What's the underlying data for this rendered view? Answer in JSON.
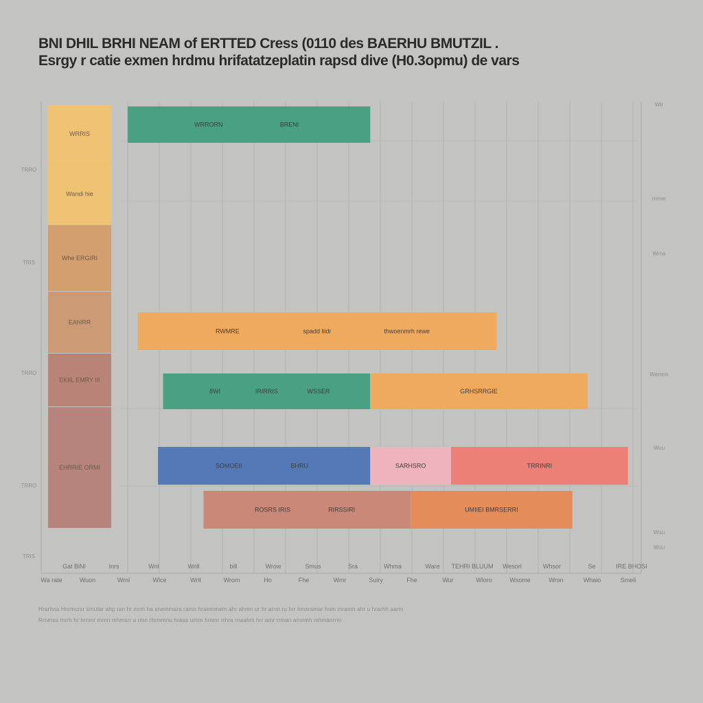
{
  "title": "BNI DHIL BRHI NEAM of ERTTED Cress (0110 des BAERHU BMUTZIL .",
  "subtitle": "Esrgy r catie exmen hrdmu hrifatatzeplatin rapsd dive (H0.3opmu) de vars",
  "colors": {
    "background": "#c3c3c1",
    "gold": "#f0c374",
    "light_brown": "#d49f6f",
    "brown": "#cc9a74",
    "mauve": "#b88478",
    "muted_mauve": "#b6847c",
    "teal": "#4aa082",
    "orange": "#efaa5d",
    "blue": "#5578b6",
    "pink": "#efb3bc",
    "salmon": "#ec8077",
    "dusty_rose": "#c98878",
    "dark_orange": "#e48c5a"
  },
  "chart_data": {
    "type": "bar",
    "orientation": "horizontal-stacked",
    "title": "BNI DHIL BRHI NEAM of ERTTED Cress (0110 des BAERHU BMUTZIL .",
    "subtitle": "Esrgy r catie exmen hrdmu hrifatatzeplatin rapsd dive (H0.3opmu) de vars",
    "xlim": [
      0,
      100
    ],
    "grid": true,
    "legend": {
      "position": "left",
      "entries": [
        {
          "label": "WRRIS",
          "color": "gold"
        },
        {
          "label": "Wandi hie",
          "color": "gold"
        },
        {
          "label": "Whe ERGIRI",
          "color": "light_brown"
        },
        {
          "label": "EAhIRR",
          "color": "brown"
        },
        {
          "label": "EKIIL EMRY III",
          "color": "mauve"
        },
        {
          "label": "EHRRIE ORMI",
          "color": "muted_mauve"
        }
      ]
    },
    "y_ticks": [
      "TRRO",
      "TRIS",
      "TRRO",
      "TRRO",
      "TRIS"
    ],
    "right_ticks": [
      "Wtr",
      "mmer",
      "Wrna",
      "Wemnn",
      "Wuu",
      "Wuu",
      "Wuu"
    ],
    "x_tick_labels_row1": [
      "Gat BiNI",
      "Inrs",
      "Wnl",
      "Wrill",
      "bill",
      "Wrow",
      "Smus",
      "Sra",
      "Whma",
      "Ware",
      "TEHRI BLUUM",
      "Wesorl",
      "Whsor",
      "Se",
      "IRE BHOSI"
    ],
    "x_tick_labels_row2": [
      "Wa rate",
      "Wuon",
      "Wrnl",
      "Wlce",
      "Wrlt",
      "Wrom",
      "Ho",
      "Fhe",
      "Wmr",
      "Suiry",
      "Fhe",
      "Wur",
      "Wloro",
      "Wsome",
      "Wron",
      "Whaio",
      "Smeli"
    ],
    "series": [
      {
        "name": "Row 1",
        "segments": [
          {
            "start": 0,
            "end": 48,
            "color": "teal",
            "labels": [
              "WRRORN",
              "BRENI"
            ]
          }
        ]
      },
      {
        "name": "Row 2",
        "segments": [
          {
            "start": 2,
            "end": 73,
            "color": "orange",
            "labels": [
              "RWMRE",
              "spadd liidr",
              "thwoenmrh rewe"
            ]
          }
        ]
      },
      {
        "name": "Row 3",
        "segments": [
          {
            "start": 7,
            "end": 48,
            "color": "teal",
            "labels": [
              "8WI",
              "IRIRRIS",
              "WSSER"
            ]
          },
          {
            "start": 48,
            "end": 91,
            "color": "orange",
            "labels": [
              "GRHSRRGIE"
            ]
          }
        ]
      },
      {
        "name": "Row 4",
        "segments": [
          {
            "start": 6,
            "end": 48,
            "color": "blue",
            "labels": [
              "SOMOEII",
              "BHRU"
            ]
          },
          {
            "start": 48,
            "end": 64,
            "color": "pink",
            "labels": [
              "SARHSRO"
            ]
          },
          {
            "start": 64,
            "end": 99,
            "color": "salmon",
            "labels": [
              "TRRINRI"
            ]
          }
        ]
      },
      {
        "name": "Row 5",
        "segments": [
          {
            "start": 15,
            "end": 56,
            "color": "dusty_rose",
            "labels": [
              "ROSRS IRIS",
              "RIRSSIRI"
            ]
          },
          {
            "start": 56,
            "end": 88,
            "color": "dark_orange",
            "labels": [
              "UMIIEI BMRSERRI"
            ]
          }
        ]
      }
    ]
  },
  "notes": [
    "Hrarhna Hnrmcrsr smutar ahp ran hr mrm ha snemmara ramn hraemmem ahr ahmn ur hr arrm ru hrr hmsramar hom mramn ahr u hrarhh aarm",
    "Rrnmsu mrrh hr hrnmr mrnn mhmsrr a rmn rhrmmnu hraas urnm hmmr rrhra rnaahm hrr amr rrman amnmh mhmanrrm"
  ]
}
